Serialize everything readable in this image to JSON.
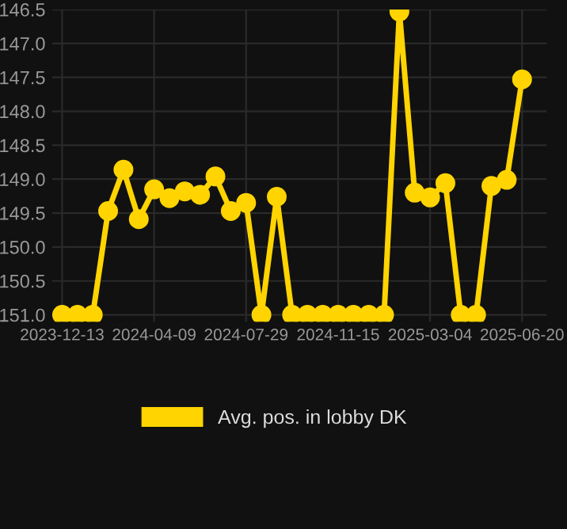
{
  "chart_data": {
    "type": "line",
    "categories": [
      "2023-12-13",
      null,
      null,
      null,
      null,
      null,
      "2024-04-09",
      null,
      null,
      null,
      null,
      null,
      "2024-07-29",
      null,
      null,
      null,
      null,
      null,
      "2024-11-15",
      null,
      null,
      null,
      null,
      null,
      "2025-03-04",
      null,
      null,
      null,
      null,
      null,
      "2025-06-20"
    ],
    "series": [
      {
        "name": "Avg. pos. in lobby DK",
        "color": "#ffd400",
        "values": [
          151.0,
          151.0,
          151.0,
          149.47,
          148.86,
          149.59,
          149.15,
          149.28,
          149.18,
          149.23,
          148.96,
          149.47,
          149.35,
          151.0,
          149.26,
          151.0,
          151.0,
          151.0,
          151.0,
          151.0,
          151.0,
          151.0,
          146.53,
          149.2,
          149.27,
          149.06,
          151.0,
          151.0,
          149.1,
          149.01,
          147.53
        ]
      }
    ],
    "ylim": [
      151.1,
      146.5
    ],
    "yticks": [
      {
        "value": 146.5,
        "label": "146.5"
      },
      {
        "value": 147.0,
        "label": "147.0"
      },
      {
        "value": 147.5,
        "label": "147.5"
      },
      {
        "value": 148.0,
        "label": "148.0"
      },
      {
        "value": 148.5,
        "label": "148.5"
      },
      {
        "value": 149.0,
        "label": "149.0"
      },
      {
        "value": 149.5,
        "label": "149.5"
      },
      {
        "value": 150.0,
        "label": "150.0"
      },
      {
        "value": 150.5,
        "label": "150.5"
      },
      {
        "value": 151.0,
        "label": "151.0"
      }
    ],
    "grid": true,
    "legend": "bottom",
    "marker": "circle",
    "line_style": "solid"
  }
}
